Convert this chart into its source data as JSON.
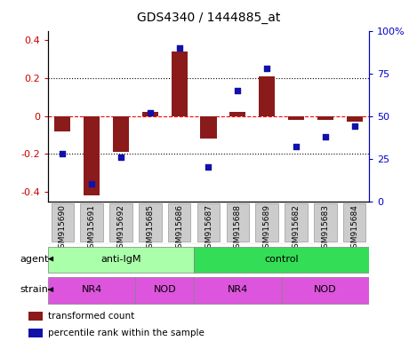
{
  "title": "GDS4340 / 1444885_at",
  "samples": [
    "GSM915690",
    "GSM915691",
    "GSM915692",
    "GSM915685",
    "GSM915686",
    "GSM915687",
    "GSM915688",
    "GSM915689",
    "GSM915682",
    "GSM915683",
    "GSM915684"
  ],
  "bar_values": [
    -0.08,
    -0.42,
    -0.19,
    0.02,
    0.34,
    -0.12,
    0.02,
    0.21,
    -0.02,
    -0.02,
    -0.03
  ],
  "dot_values": [
    28,
    10,
    26,
    52,
    90,
    20,
    65,
    78,
    32,
    38,
    44
  ],
  "bar_color": "#8B1A1A",
  "dot_color": "#1111AA",
  "ylim_left": [
    -0.45,
    0.45
  ],
  "ylim_right": [
    0,
    100
  ],
  "yticks_left": [
    -0.4,
    -0.2,
    0.0,
    0.2,
    0.4
  ],
  "ytick_labels_left": [
    "-0.4",
    "-0.2",
    "0",
    "0.2",
    "0.4"
  ],
  "yticks_right": [
    0,
    25,
    50,
    75,
    100
  ],
  "ytick_labels_right": [
    "0",
    "25",
    "50",
    "75",
    "100%"
  ],
  "hlines": [
    -0.2,
    0.0,
    0.2
  ],
  "hline_styles": [
    "dotted",
    "dashed",
    "dotted"
  ],
  "hline_colors": [
    "black",
    "red",
    "black"
  ],
  "agent_labels": [
    {
      "text": "anti-IgM",
      "start": 0,
      "end": 5
    },
    {
      "text": "control",
      "start": 5,
      "end": 11
    }
  ],
  "agent_colors": [
    "#AAFFAA",
    "#33DD55"
  ],
  "strain_labels": [
    {
      "text": "NR4",
      "start": 0,
      "end": 3
    },
    {
      "text": "NOD",
      "start": 3,
      "end": 5
    },
    {
      "text": "NR4",
      "start": 5,
      "end": 8
    },
    {
      "text": "NOD",
      "start": 8,
      "end": 11
    }
  ],
  "strain_color": "#DD55DD",
  "bar_width": 0.55,
  "legend_items": [
    {
      "color": "#8B1A1A",
      "label": "transformed count"
    },
    {
      "color": "#1111AA",
      "label": "percentile rank within the sample"
    }
  ],
  "tick_bg_color": "#CCCCCC",
  "tick_edge_color": "#999999",
  "left_label_color": "#CC0000",
  "right_label_color": "#0000CC",
  "label_fontsize": 8,
  "title_fontsize": 10,
  "sample_fontsize": 6.5
}
